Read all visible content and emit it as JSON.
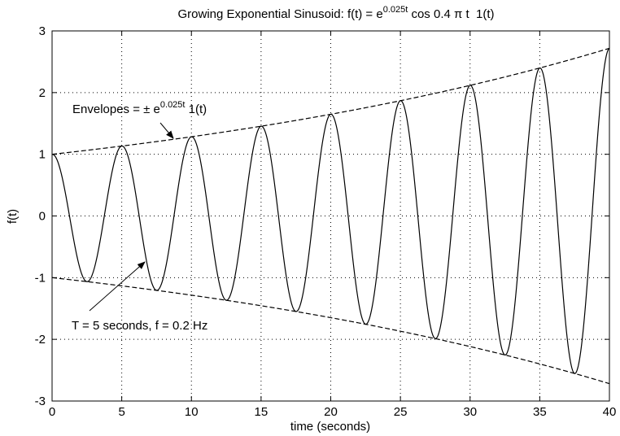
{
  "chart_data": {
    "type": "line",
    "title": {
      "prefix": "Growing Exponential Sinusoid: f(t) = e",
      "exponent": "0.025t",
      "suffix": " cos 0.4 π t  1(t)"
    },
    "xlabel": "time (seconds)",
    "ylabel": "f(t)",
    "xlim": [
      0,
      40
    ],
    "ylim": [
      -3,
      3
    ],
    "xticks": [
      0,
      5,
      10,
      15,
      20,
      25,
      30,
      35,
      40
    ],
    "yticks": [
      -3,
      -2,
      -1,
      0,
      1,
      2,
      3
    ],
    "grid": true,
    "series": [
      {
        "role": "signal",
        "style": "solid",
        "color": "#000000",
        "function": "exp(0.025*t)*cos(0.4*pi*t)",
        "t_range": [
          0,
          40
        ]
      },
      {
        "role": "upper-envelope",
        "style": "dashed",
        "color": "#000000",
        "function": "exp(0.025*t)",
        "t_range": [
          0,
          40
        ]
      },
      {
        "role": "lower-envelope",
        "style": "dashed",
        "color": "#000000",
        "function": "-exp(0.025*t)",
        "t_range": [
          0,
          40
        ]
      }
    ],
    "annotations": {
      "envelopes": {
        "prefix": "Envelopes = ± e",
        "exponent": "0.025t",
        "suffix": " 1(t)",
        "points_to": {
          "t": 9.5,
          "value": 1.27
        }
      },
      "period": {
        "text": "T = 5 seconds, f = 0.2 Hz",
        "points_to": {
          "t": 7.5,
          "value": -0.78
        }
      }
    }
  }
}
